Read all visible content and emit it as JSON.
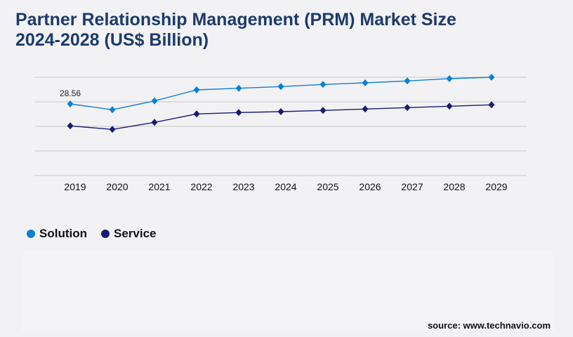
{
  "title_line1": "Partner Relationship Management (PRM) Market Size",
  "title_line2": "2024-2028 (US$ Billion)",
  "source": "source: www.technavio.com",
  "colors": {
    "solution": "#0a7fd6",
    "service": "#1b1a72",
    "title": "#1d3a6b",
    "grid": "#c8c8cc"
  },
  "chart_data": {
    "type": "line",
    "title": "Partner Relationship Management (PRM) Market Size 2024-2028 (US$ Billion)",
    "x": [
      "2019",
      "2020",
      "2021",
      "2022",
      "2023",
      "2024",
      "2025",
      "2026",
      "2027",
      "2028",
      "2029"
    ],
    "series": [
      {
        "name": "Solution",
        "color": "#0a7fd6",
        "marker": "diamond",
        "values": [
          28.56,
          26.24,
          29.76,
          34.16,
          34.8,
          35.48,
          36.32,
          36.96,
          37.72,
          38.64,
          39.2
        ]
      },
      {
        "name": "Service",
        "color": "#1b1a72",
        "marker": "diamond",
        "values": [
          19.8,
          18.4,
          21.2,
          24.56,
          25.12,
          25.48,
          25.96,
          26.52,
          27.08,
          27.64,
          28.2
        ]
      }
    ],
    "annotations": [
      {
        "series": "Solution",
        "x": "2019",
        "label": "28.56"
      }
    ],
    "ylim": [
      0,
      39.2
    ],
    "y_tick_labels_shown": false,
    "grid": true,
    "legend_placement": "bottom-left"
  }
}
